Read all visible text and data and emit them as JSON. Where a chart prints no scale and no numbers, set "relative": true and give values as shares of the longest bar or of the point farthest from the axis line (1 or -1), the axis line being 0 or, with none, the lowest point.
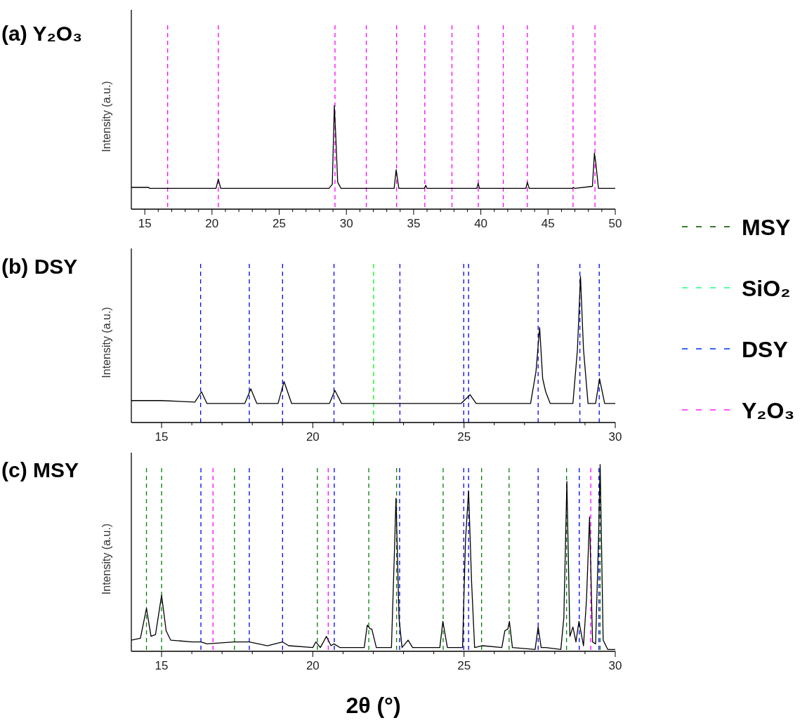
{
  "chart_data": [
    {
      "type": "line",
      "title": "(a) Y₂O₃",
      "ylabel": "Intensity (a.u.)",
      "relative": true,
      "color": "#000000",
      "x": [
        14.0,
        15.3,
        15.35,
        20.3,
        20.47,
        20.65,
        28.7,
        28.95,
        29.1,
        29.2,
        29.35,
        29.6,
        33.55,
        33.7,
        33.9,
        35.8,
        35.9,
        36.0,
        39.7,
        39.8,
        39.9,
        43.35,
        43.46,
        43.6,
        46.8,
        46.88,
        47.0,
        48.3,
        48.45,
        48.55,
        48.75,
        50.0
      ],
      "values": [
        0.21,
        0.21,
        0.2,
        0.2,
        0.29,
        0.2,
        0.2,
        0.24,
        1.0,
        0.73,
        0.26,
        0.2,
        0.2,
        0.38,
        0.2,
        0.2,
        0.23,
        0.2,
        0.2,
        0.25,
        0.2,
        0.2,
        0.26,
        0.2,
        0.2,
        0.21,
        0.2,
        0.22,
        0.54,
        0.45,
        0.2,
        0.2
      ],
      "xlim": [
        14,
        50
      ],
      "xticks": [
        15,
        {
          "value": 16,
          "label": null
        },
        {
          "value": 17,
          "label": null
        },
        {
          "value": 18,
          "label": null
        },
        {
          "value": 19,
          "label": null
        },
        20,
        {
          "value": 21,
          "label": null
        },
        {
          "value": 22,
          "label": null
        },
        {
          "value": 23,
          "label": null
        },
        {
          "value": 24,
          "label": null
        },
        25,
        {
          "value": 26,
          "label": null
        },
        {
          "value": 27,
          "label": null
        },
        {
          "value": 28,
          "label": null
        },
        {
          "value": 29,
          "label": null
        },
        30,
        {
          "value": 31,
          "label": null
        },
        {
          "value": 32,
          "label": null
        },
        {
          "value": 33,
          "label": null
        },
        {
          "value": 34,
          "label": null
        },
        35,
        {
          "value": 36,
          "label": null
        },
        {
          "value": 37,
          "label": null
        },
        {
          "value": 38,
          "label": null
        },
        {
          "value": 39,
          "label": null
        },
        40,
        {
          "value": 41,
          "label": null
        },
        {
          "value": 42,
          "label": null
        },
        {
          "value": 43,
          "label": null
        },
        {
          "value": 44,
          "label": null
        },
        45,
        {
          "value": 46,
          "label": null
        },
        {
          "value": 47,
          "label": null
        },
        {
          "value": 48,
          "label": null
        },
        {
          "value": 49,
          "label": null
        },
        50
      ],
      "ref_lines": [
        {
          "axis": "x",
          "value": 16.7,
          "color": "#ff00ff",
          "line_style": "dashed"
        },
        {
          "axis": "x",
          "value": 20.47,
          "color": "#ff00ff",
          "line_style": "dashed"
        },
        {
          "axis": "x",
          "value": 29.15,
          "color": "#ff00ff",
          "line_style": "dashed"
        },
        {
          "axis": "x",
          "value": 31.48,
          "color": "#ff00ff",
          "line_style": "dashed"
        },
        {
          "axis": "x",
          "value": 33.73,
          "color": "#ff00ff",
          "line_style": "dashed"
        },
        {
          "axis": "x",
          "value": 35.83,
          "color": "#ff00ff",
          "line_style": "dashed"
        },
        {
          "axis": "x",
          "value": 37.85,
          "color": "#ff00ff",
          "line_style": "dashed"
        },
        {
          "axis": "x",
          "value": 39.81,
          "color": "#ff00ff",
          "line_style": "dashed"
        },
        {
          "axis": "x",
          "value": 41.67,
          "color": "#ff00ff",
          "line_style": "dashed"
        },
        {
          "axis": "x",
          "value": 43.46,
          "color": "#ff00ff",
          "line_style": "dashed"
        },
        {
          "axis": "x",
          "value": 46.86,
          "color": "#ff00ff",
          "line_style": "dashed"
        },
        {
          "axis": "x",
          "value": 48.49,
          "color": "#ff00ff",
          "line_style": "dashed"
        }
      ]
    },
    {
      "type": "line",
      "title": "(b) DSY",
      "ylabel": "Intensity (a.u.)",
      "relative": true,
      "color": "#000000",
      "x": [
        14.0,
        15.0,
        16.1,
        16.32,
        16.5,
        17.75,
        17.95,
        18.15,
        18.85,
        19.05,
        19.3,
        20.55,
        20.73,
        20.95,
        24.9,
        25.2,
        25.4,
        27.2,
        27.38,
        27.5,
        27.6,
        27.7,
        27.85,
        28.6,
        28.75,
        28.85,
        28.95,
        29.1,
        29.35,
        29.48,
        29.65,
        30.0
      ],
      "values": [
        0.15,
        0.15,
        0.14,
        0.21,
        0.13,
        0.13,
        0.23,
        0.13,
        0.13,
        0.28,
        0.13,
        0.13,
        0.22,
        0.13,
        0.13,
        0.19,
        0.13,
        0.13,
        0.35,
        0.65,
        0.3,
        0.21,
        0.13,
        0.13,
        0.5,
        1.0,
        0.5,
        0.13,
        0.13,
        0.3,
        0.13,
        0.13
      ],
      "xlim": [
        14,
        30
      ],
      "xticks": [
        15,
        {
          "value": 16,
          "label": null
        },
        {
          "value": 17,
          "label": null
        },
        {
          "value": 18,
          "label": null
        },
        {
          "value": 19,
          "label": null
        },
        20,
        {
          "value": 21,
          "label": null
        },
        {
          "value": 22,
          "label": null
        },
        {
          "value": 23,
          "label": null
        },
        {
          "value": 24,
          "label": null
        },
        25,
        {
          "value": 26,
          "label": null
        },
        {
          "value": 27,
          "label": null
        },
        {
          "value": 28,
          "label": null
        },
        {
          "value": 29,
          "label": null
        },
        30
      ],
      "ref_lines": [
        {
          "axis": "x",
          "value": 16.29,
          "color": "#0000ff",
          "line_style": "dashed"
        },
        {
          "axis": "x",
          "value": 17.9,
          "color": "#0000ff",
          "line_style": "dashed"
        },
        {
          "axis": "x",
          "value": 19.0,
          "color": "#0000ff",
          "line_style": "dashed"
        },
        {
          "axis": "x",
          "value": 20.7,
          "color": "#0000ff",
          "line_style": "dashed"
        },
        {
          "axis": "x",
          "value": 22.01,
          "color": "#00ff00",
          "line_style": "dashed"
        },
        {
          "axis": "x",
          "value": 22.88,
          "color": "#0000ff",
          "line_style": "dashed"
        },
        {
          "axis": "x",
          "value": 24.99,
          "color": "#0000ff",
          "line_style": "dashed"
        },
        {
          "axis": "x",
          "value": 25.15,
          "color": "#0000ff",
          "line_style": "dashed"
        },
        {
          "axis": "x",
          "value": 27.45,
          "color": "#0000ff",
          "line_style": "dashed"
        },
        {
          "axis": "x",
          "value": 28.83,
          "color": "#0000ff",
          "line_style": "dashed"
        },
        {
          "axis": "x",
          "value": 29.47,
          "color": "#0000ff",
          "line_style": "dashed"
        }
      ]
    },
    {
      "type": "line",
      "title": "(c) MSY",
      "ylabel": "Intensity (a.u.)",
      "xlabel": "2θ (°)",
      "relative": true,
      "color": "#000000",
      "x": [
        14.0,
        14.3,
        14.5,
        14.65,
        14.8,
        15.0,
        15.15,
        15.3,
        16.0,
        16.3,
        16.5,
        17.4,
        17.9,
        18.5,
        19.0,
        19.2,
        20.0,
        20.1,
        20.25,
        20.45,
        20.6,
        20.7,
        20.9,
        21.7,
        21.8,
        21.9,
        21.95,
        22.1,
        22.6,
        22.7,
        22.75,
        22.85,
        22.95,
        23.15,
        23.3,
        24.2,
        24.3,
        24.45,
        24.95,
        25.05,
        25.15,
        25.25,
        25.35,
        25.6,
        26.25,
        26.35,
        26.45,
        26.5,
        26.6,
        27.35,
        27.45,
        27.55,
        27.7,
        28.2,
        28.3,
        28.4,
        28.5,
        28.6,
        28.7,
        28.8,
        28.95,
        29.05,
        29.15,
        29.25,
        29.35,
        29.45,
        29.5,
        29.6,
        29.75,
        30.0
      ],
      "values": [
        0.06,
        0.07,
        0.23,
        0.08,
        0.09,
        0.3,
        0.11,
        0.06,
        0.05,
        0.05,
        0.04,
        0.05,
        0.05,
        0.03,
        0.05,
        0.03,
        0.02,
        0.05,
        0.02,
        0.08,
        0.03,
        0.04,
        0.02,
        0.02,
        0.14,
        0.12,
        0.12,
        0.02,
        0.02,
        0.54,
        0.82,
        0.18,
        0.02,
        0.06,
        0.02,
        0.02,
        0.16,
        0.02,
        0.02,
        0.6,
        0.86,
        0.37,
        0.02,
        0.03,
        0.02,
        0.11,
        0.12,
        0.16,
        0.02,
        0.01,
        0.13,
        0.02,
        0.02,
        0.01,
        0.18,
        0.91,
        0.08,
        0.13,
        0.05,
        0.16,
        0.03,
        0.28,
        0.72,
        0.05,
        0.04,
        0.62,
        1.0,
        0.06,
        0.01,
        0.01
      ],
      "xlim": [
        14,
        30
      ],
      "xticks": [
        15,
        {
          "value": 16,
          "label": null
        },
        {
          "value": 17,
          "label": null
        },
        {
          "value": 18,
          "label": null
        },
        {
          "value": 19,
          "label": null
        },
        20,
        {
          "value": 21,
          "label": null
        },
        {
          "value": 22,
          "label": null
        },
        {
          "value": 23,
          "label": null
        },
        {
          "value": 24,
          "label": null
        },
        25,
        {
          "value": 26,
          "label": null
        },
        {
          "value": 27,
          "label": null
        },
        {
          "value": 28,
          "label": null
        },
        {
          "value": 29,
          "label": null
        },
        30
      ],
      "ref_lines": [
        {
          "axis": "x",
          "value": 14.5,
          "color": "#008000",
          "line_style": "dashed"
        },
        {
          "axis": "x",
          "value": 15.0,
          "color": "#008000",
          "line_style": "dashed"
        },
        {
          "axis": "x",
          "value": 16.3,
          "color": "#0000ff",
          "line_style": "dashed"
        },
        {
          "axis": "x",
          "value": 16.7,
          "color": "#ff00ff",
          "line_style": "dashed"
        },
        {
          "axis": "x",
          "value": 17.41,
          "color": "#008000",
          "line_style": "dashed"
        },
        {
          "axis": "x",
          "value": 17.9,
          "color": "#0000ff",
          "line_style": "dashed"
        },
        {
          "axis": "x",
          "value": 19.0,
          "color": "#0000ff",
          "line_style": "dashed"
        },
        {
          "axis": "x",
          "value": 20.15,
          "color": "#008000",
          "line_style": "dashed"
        },
        {
          "axis": "x",
          "value": 20.51,
          "color": "#ff00ff",
          "line_style": "dashed"
        },
        {
          "axis": "x",
          "value": 20.71,
          "color": "#0000ff",
          "line_style": "dashed"
        },
        {
          "axis": "x",
          "value": 21.85,
          "color": "#008000",
          "line_style": "dashed"
        },
        {
          "axis": "x",
          "value": 22.77,
          "color": "#008000",
          "line_style": "dashed"
        },
        {
          "axis": "x",
          "value": 22.87,
          "color": "#0000ff",
          "line_style": "dashed"
        },
        {
          "axis": "x",
          "value": 24.31,
          "color": "#008000",
          "line_style": "dashed"
        },
        {
          "axis": "x",
          "value": 24.99,
          "color": "#0000ff",
          "line_style": "dashed"
        },
        {
          "axis": "x",
          "value": 25.15,
          "color": "#0000ff",
          "line_style": "dashed"
        },
        {
          "axis": "x",
          "value": 25.58,
          "color": "#008000",
          "line_style": "dashed"
        },
        {
          "axis": "x",
          "value": 26.49,
          "color": "#008000",
          "line_style": "dashed"
        },
        {
          "axis": "x",
          "value": 27.45,
          "color": "#0000ff",
          "line_style": "dashed"
        },
        {
          "axis": "x",
          "value": 28.39,
          "color": "#008000",
          "line_style": "dashed"
        },
        {
          "axis": "x",
          "value": 28.81,
          "color": "#0000ff",
          "line_style": "dashed"
        },
        {
          "axis": "x",
          "value": 29.19,
          "color": "#ff00ff",
          "line_style": "dashed"
        },
        {
          "axis": "x",
          "value": 29.46,
          "color": "#0000ff",
          "line_style": "dashed"
        },
        {
          "axis": "x",
          "value": 29.5,
          "color": "#008000",
          "line_style": "dashed"
        }
      ]
    },
    {
      "type": "other",
      "annotations": [
        "MSY",
        "SiO₂",
        "DSY",
        "Y₂O₃"
      ],
      "colors": [
        "#3a7a2a",
        "#55ff99",
        "#3366ff",
        "#ff55ff"
      ]
    }
  ]
}
